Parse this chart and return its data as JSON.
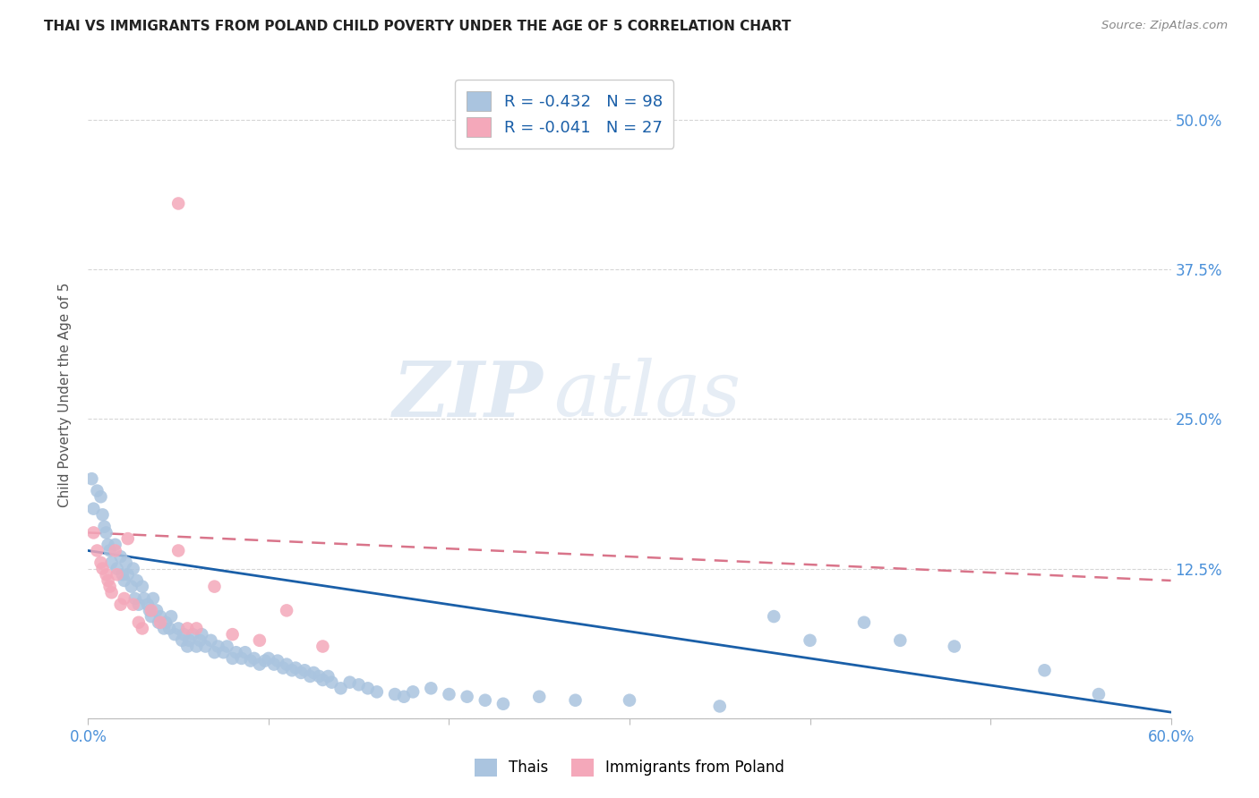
{
  "title": "THAI VS IMMIGRANTS FROM POLAND CHILD POVERTY UNDER THE AGE OF 5 CORRELATION CHART",
  "source": "Source: ZipAtlas.com",
  "ylabel": "Child Poverty Under the Age of 5",
  "xlim": [
    0.0,
    0.6
  ],
  "ylim": [
    0.0,
    0.54
  ],
  "ytick_positions": [
    0.0,
    0.125,
    0.25,
    0.375,
    0.5
  ],
  "ytick_labels": [
    "",
    "12.5%",
    "25.0%",
    "37.5%",
    "50.0%"
  ],
  "thai_color": "#aac4df",
  "poland_color": "#f4a8ba",
  "thai_line_color": "#1a5fa8",
  "poland_line_color": "#d9748a",
  "legend_thai_label": "R = -0.432   N = 98",
  "legend_poland_label": "R = -0.041   N = 27",
  "watermark_zip": "ZIP",
  "watermark_atlas": "atlas",
  "thai_x": [
    0.002,
    0.003,
    0.005,
    0.007,
    0.008,
    0.009,
    0.01,
    0.011,
    0.012,
    0.013,
    0.015,
    0.016,
    0.018,
    0.019,
    0.02,
    0.021,
    0.022,
    0.024,
    0.025,
    0.026,
    0.027,
    0.028,
    0.03,
    0.031,
    0.033,
    0.034,
    0.035,
    0.036,
    0.038,
    0.039,
    0.04,
    0.042,
    0.043,
    0.045,
    0.046,
    0.048,
    0.05,
    0.052,
    0.053,
    0.055,
    0.056,
    0.058,
    0.06,
    0.062,
    0.063,
    0.065,
    0.068,
    0.07,
    0.072,
    0.075,
    0.077,
    0.08,
    0.082,
    0.085,
    0.087,
    0.09,
    0.092,
    0.095,
    0.098,
    0.1,
    0.103,
    0.105,
    0.108,
    0.11,
    0.113,
    0.115,
    0.118,
    0.12,
    0.123,
    0.125,
    0.128,
    0.13,
    0.133,
    0.135,
    0.14,
    0.145,
    0.15,
    0.155,
    0.16,
    0.17,
    0.175,
    0.18,
    0.19,
    0.2,
    0.21,
    0.22,
    0.23,
    0.25,
    0.27,
    0.3,
    0.35,
    0.38,
    0.4,
    0.43,
    0.45,
    0.48,
    0.53,
    0.56
  ],
  "thai_y": [
    0.2,
    0.175,
    0.19,
    0.185,
    0.17,
    0.16,
    0.155,
    0.145,
    0.14,
    0.13,
    0.145,
    0.125,
    0.135,
    0.12,
    0.115,
    0.13,
    0.12,
    0.11,
    0.125,
    0.1,
    0.115,
    0.095,
    0.11,
    0.1,
    0.095,
    0.09,
    0.085,
    0.1,
    0.09,
    0.08,
    0.085,
    0.075,
    0.08,
    0.075,
    0.085,
    0.07,
    0.075,
    0.065,
    0.07,
    0.06,
    0.065,
    0.07,
    0.06,
    0.065,
    0.07,
    0.06,
    0.065,
    0.055,
    0.06,
    0.055,
    0.06,
    0.05,
    0.055,
    0.05,
    0.055,
    0.048,
    0.05,
    0.045,
    0.048,
    0.05,
    0.045,
    0.048,
    0.042,
    0.045,
    0.04,
    0.042,
    0.038,
    0.04,
    0.035,
    0.038,
    0.035,
    0.032,
    0.035,
    0.03,
    0.025,
    0.03,
    0.028,
    0.025,
    0.022,
    0.02,
    0.018,
    0.022,
    0.025,
    0.02,
    0.018,
    0.015,
    0.012,
    0.018,
    0.015,
    0.015,
    0.01,
    0.085,
    0.065,
    0.08,
    0.065,
    0.06,
    0.04,
    0.02
  ],
  "poland_x": [
    0.003,
    0.005,
    0.007,
    0.008,
    0.01,
    0.011,
    0.012,
    0.013,
    0.015,
    0.016,
    0.018,
    0.02,
    0.022,
    0.025,
    0.028,
    0.03,
    0.035,
    0.04,
    0.05,
    0.055,
    0.06,
    0.07,
    0.08,
    0.095,
    0.11,
    0.13,
    0.05
  ],
  "poland_y": [
    0.155,
    0.14,
    0.13,
    0.125,
    0.12,
    0.115,
    0.11,
    0.105,
    0.14,
    0.12,
    0.095,
    0.1,
    0.15,
    0.095,
    0.08,
    0.075,
    0.09,
    0.08,
    0.14,
    0.075,
    0.075,
    0.11,
    0.07,
    0.065,
    0.09,
    0.06,
    0.43
  ],
  "thai_trend_x0": 0.0,
  "thai_trend_y0": 0.14,
  "thai_trend_x1": 0.6,
  "thai_trend_y1": 0.005,
  "poland_trend_x0": 0.0,
  "poland_trend_y0": 0.155,
  "poland_trend_x1": 0.6,
  "poland_trend_y1": 0.115
}
